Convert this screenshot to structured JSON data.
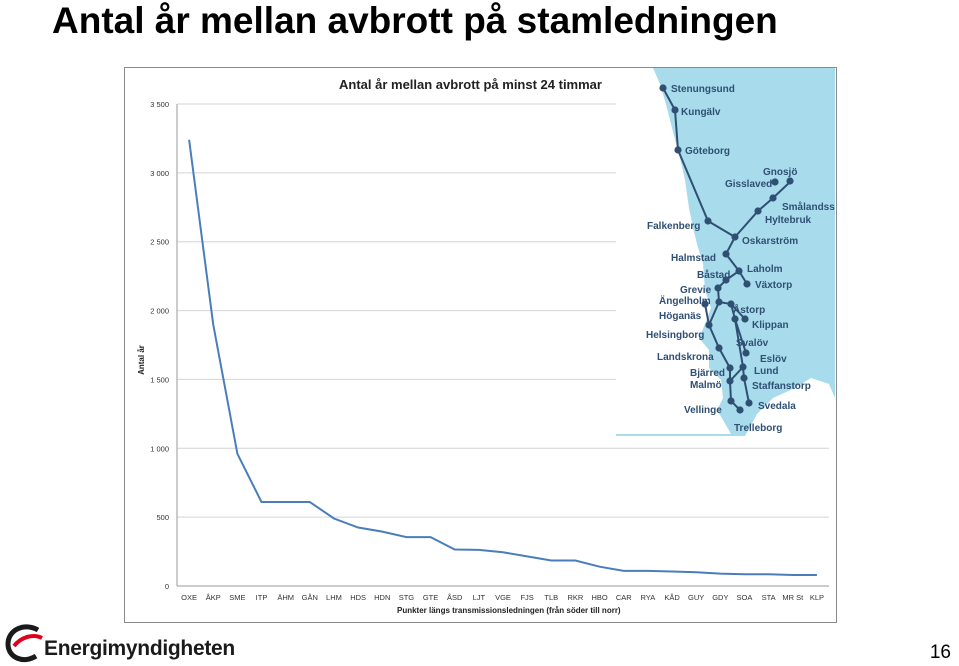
{
  "slide": {
    "title": "Antal år mellan avbrott på stamledningen",
    "page_number": "16",
    "brand": "Energimyndigheten"
  },
  "chart_data": {
    "type": "line",
    "title": "Antal år mellan avbrott på minst 24 timmar",
    "xlabel": "Punkter längs transmissionsledningen (från söder till norr)",
    "ylabel": "Antal år",
    "ylim": [
      0,
      3500
    ],
    "yticks": [
      0,
      500,
      1000,
      1500,
      2000,
      2500,
      3000,
      3500
    ],
    "ytick_labels": [
      "0",
      "500",
      "1 000",
      "1 500",
      "2 000",
      "2 500",
      "3 000",
      "3 500"
    ],
    "categories": [
      "OXE",
      "ÅKP",
      "SME",
      "ITP",
      "ÄHM",
      "GÅN",
      "LHM",
      "HDS",
      "HDN",
      "STG",
      "GTE",
      "ÅSD",
      "LJT",
      "VGE",
      "FJS",
      "TLB",
      "RKR",
      "HBO",
      "CAR",
      "RYA",
      "KÅD",
      "GUY",
      "GDY",
      "SOA",
      "STA",
      "MR St",
      "KLP"
    ],
    "values": [
      3240,
      1900,
      960,
      610,
      610,
      610,
      490,
      425,
      395,
      355,
      355,
      265,
      262,
      245,
      215,
      185,
      185,
      140,
      110,
      110,
      105,
      100,
      90,
      85,
      85,
      80,
      80
    ],
    "grid": true,
    "line_color": "#4a7ebb"
  },
  "map": {
    "sea_color": "#a8dcec",
    "line_color": "#2f4f73",
    "places": [
      "Stenungsund",
      "Kungälv",
      "Göteborg",
      "Gnosjö",
      "Gisslaved",
      "Smålandss",
      "Hyltebruk",
      "Falkenberg",
      "Oskarström",
      "Halmstad",
      "Laholm",
      "Båstad",
      "Växtorp",
      "Grevie",
      "Ängelholm",
      "Åstorp",
      "Höganäs",
      "Klippan",
      "Helsingborg",
      "Svalöv",
      "Landskrona",
      "Eslöv",
      "Bjärred",
      "Lund",
      "Malmö",
      "Staffanstorp",
      "Svedala",
      "Vellinge",
      "Trelleborg"
    ]
  }
}
